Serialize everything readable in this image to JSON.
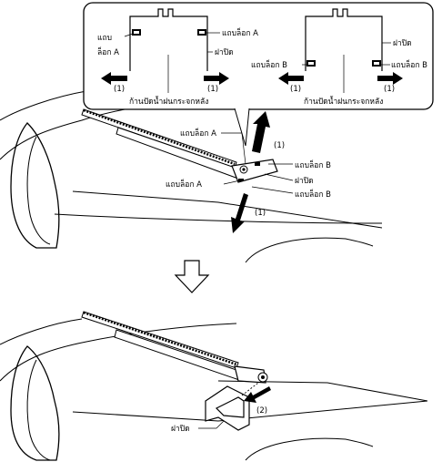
{
  "labels": {
    "tab_left_line1": "แถบ",
    "tab_left_line2": "ล็อก A",
    "lock_tab_a": "แถบล็อก A",
    "cover": "ฝาปิด",
    "lock_tab_b": "แถบล็อก B",
    "rear_wiper_arm": "ก้านปัดน้ำฝนกระจกหลัง",
    "step1": "(1)",
    "step2": "(2)"
  }
}
